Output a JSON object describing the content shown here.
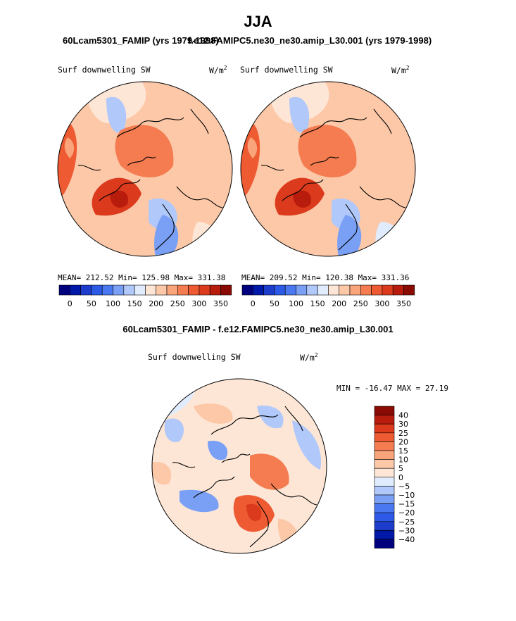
{
  "title": "JJA",
  "colors": {
    "levels_abs": [
      "#00007f",
      "#0018a8",
      "#1e3ccc",
      "#2c5ae6",
      "#4a78f0",
      "#7aa0f5",
      "#b0c8fa",
      "#e0ecfd",
      "#fde6d6",
      "#fcc8a8",
      "#f9a47a",
      "#f47c50",
      "#ee5a32",
      "#dc3a1c",
      "#b81c0c",
      "#8a0a04"
    ],
    "levels_diff": [
      "#00007f",
      "#0018a8",
      "#1e3ccc",
      "#2c5ae6",
      "#4a78f0",
      "#7aa0f5",
      "#b0c8fa",
      "#e0ecfd",
      "#fde6d6",
      "#fcc8a8",
      "#f9a47a",
      "#f47c50",
      "#ee5a32",
      "#dc3a1c",
      "#b81c0c",
      "#8a0a04"
    ]
  },
  "chart_data": [
    {
      "type": "heatmap",
      "title": "60Lcam5301_FAMIP (yrs 1979-1998)",
      "variable": "Surf downwelling SW",
      "units_base": "W/m",
      "units_exp": "2",
      "stats": "MEAN= 212.52  Min= 125.98  Max= 331.38",
      "mean": 212.52,
      "min": 125.98,
      "max": 331.38,
      "colorbar_ticks": [
        "0",
        "50",
        "100",
        "150",
        "200",
        "250",
        "300",
        "350"
      ]
    },
    {
      "type": "heatmap",
      "title": "f.e12.FAMIPC5.ne30_ne30.amip_L30.001 (yrs 1979-1998)",
      "variable": "Surf downwelling SW",
      "units_base": "W/m",
      "units_exp": "2",
      "stats": "MEAN= 209.52  Min= 120.38  Max= 331.36",
      "mean": 209.52,
      "min": 120.38,
      "max": 331.36,
      "colorbar_ticks": [
        "0",
        "50",
        "100",
        "150",
        "200",
        "250",
        "300",
        "350"
      ]
    },
    {
      "type": "heatmap",
      "title": "60Lcam5301_FAMIP - f.e12.FAMIPC5.ne30_ne30.amip_L30.001",
      "variable": "Surf downwelling SW",
      "units_base": "W/m",
      "units_exp": "2",
      "stats": "MIN = -16.47 MAX =  27.19",
      "min": -16.47,
      "max": 27.19,
      "colorbar_ticks": [
        "40",
        "30",
        "25",
        "20",
        "15",
        "10",
        "5",
        "0",
        "−5",
        "−10",
        "−15",
        "−20",
        "−25",
        "−30",
        "−40"
      ]
    }
  ]
}
